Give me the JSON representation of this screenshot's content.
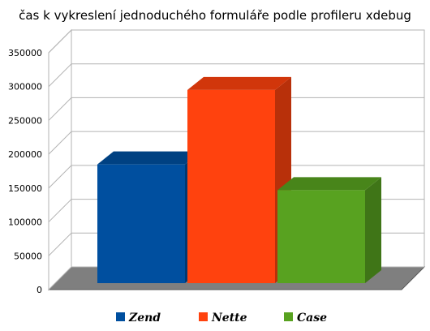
{
  "chart_data": {
    "type": "bar",
    "title": "čas k vykreslení jednoduchého formuláře podle profileru xdebug",
    "xlabel": "",
    "ylabel": "",
    "categories": [
      "Zend",
      "Nette",
      "Case"
    ],
    "series": [
      {
        "name": "Zend",
        "values": [
          185000,
          null,
          null
        ],
        "color": "#004f9f"
      },
      {
        "name": "Nette",
        "values": [
          null,
          295000,
          null
        ],
        "color": "#ff420e"
      },
      {
        "name": "Case",
        "values": [
          null,
          null,
          147000
        ],
        "color": "#58a220"
      }
    ],
    "ylim": [
      0,
      350000
    ],
    "yticks": [
      0,
      50000,
      100000,
      150000,
      200000,
      250000,
      300000,
      350000
    ],
    "ytick_labels": [
      "0",
      "50000",
      "100000",
      "150000",
      "200000",
      "250000",
      "300000",
      "350000"
    ],
    "grid": true,
    "legend": "bottom",
    "style": "3d"
  }
}
